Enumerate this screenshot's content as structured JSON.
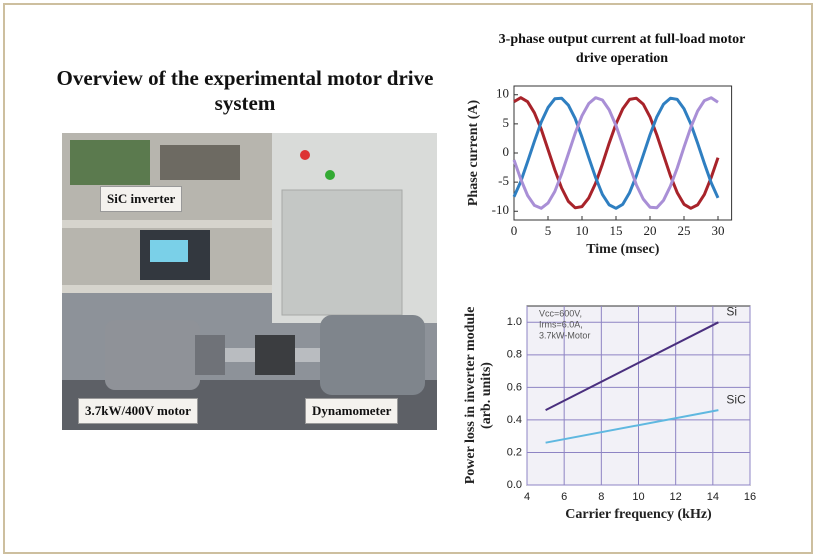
{
  "figure": {
    "title": "Overview of the experimental motor drive system",
    "photo_labels": [
      "SiC inverter",
      "3.7kW/400V motor",
      "Dynamometer"
    ]
  },
  "chart_data": [
    {
      "type": "line",
      "title": "3-phase output current at full-load motor drive operation",
      "xlabel": "Time (msec)",
      "ylabel": [
        "Phase current  (A)"
      ],
      "x": [
        0,
        1,
        2,
        3,
        4,
        5,
        6,
        7,
        8,
        9,
        10,
        11,
        12,
        13,
        14,
        15,
        16,
        17,
        18,
        19,
        20,
        21,
        22,
        23,
        24,
        25,
        26,
        27,
        28,
        29,
        30
      ],
      "series": [
        {
          "color": "#a8232a",
          "values": [
            8.8,
            9.5,
            8.8,
            6.9,
            4.1,
            0.6,
            -2.9,
            -6.0,
            -8.3,
            -9.4,
            -9.2,
            -7.7,
            -5.2,
            -1.9,
            1.7,
            5.0,
            7.6,
            9.2,
            9.4,
            8.4,
            6.2,
            3.1,
            -0.4,
            -3.9,
            -6.8,
            -8.8,
            -9.5,
            -8.9,
            -7.1,
            -4.2,
            -0.8
          ]
        },
        {
          "color": "#2f7fc1",
          "values": [
            -7.5,
            -4.9,
            -1.5,
            2.0,
            5.3,
            7.8,
            9.3,
            9.4,
            8.2,
            5.9,
            2.7,
            -0.8,
            -4.2,
            -7.1,
            -8.9,
            -9.5,
            -8.8,
            -6.8,
            -3.9,
            -0.4,
            3.1,
            6.2,
            8.4,
            9.4,
            9.2,
            7.6,
            5.0,
            1.7,
            -1.8,
            -5.1,
            -7.7
          ]
        },
        {
          "color": "#a98fd6",
          "values": [
            -1.2,
            -4.5,
            -7.3,
            -9.0,
            -9.5,
            -8.6,
            -6.6,
            -3.6,
            -0.1,
            3.4,
            6.4,
            8.5,
            9.5,
            9.1,
            7.4,
            4.7,
            1.3,
            -2.2,
            -5.5,
            -7.9,
            -9.3,
            -9.4,
            -8.1,
            -5.7,
            -2.6,
            1.0,
            4.4,
            7.2,
            9.0,
            9.5,
            8.7
          ]
        }
      ],
      "xlim": [
        0,
        32
      ],
      "ylim": [
        -11.5,
        11.5
      ],
      "xticks": [
        0,
        5,
        10,
        15,
        20,
        25,
        30
      ],
      "yticks": [
        -10,
        -5,
        0,
        5,
        10
      ],
      "grid": false
    },
    {
      "type": "line",
      "xlabel": "Carrier frequency (kHz)",
      "ylabel": [
        "Power loss in inverter module",
        "(arb. units)"
      ],
      "annotations": [
        "Vcc=600V,",
        "Irms=6.0A,",
        "3.7kW-Motor"
      ],
      "x": [
        5,
        14.3
      ],
      "series": [
        {
          "name": "Si",
          "color": "#4a2f7e",
          "values": [
            0.46,
            1.0
          ]
        },
        {
          "name": "SiC",
          "color": "#5fb8e0",
          "values": [
            0.26,
            0.46
          ]
        }
      ],
      "xlim": [
        4,
        16
      ],
      "ylim": [
        0,
        1.1
      ],
      "xticks": [
        4,
        6,
        8,
        10,
        12,
        14,
        16
      ],
      "yticks": [
        {
          "value": 0,
          "label": "0.0"
        },
        0.2,
        0.4,
        0.6,
        0.8,
        {
          "value": 1,
          "label": "1.0"
        }
      ],
      "grid": true
    }
  ]
}
